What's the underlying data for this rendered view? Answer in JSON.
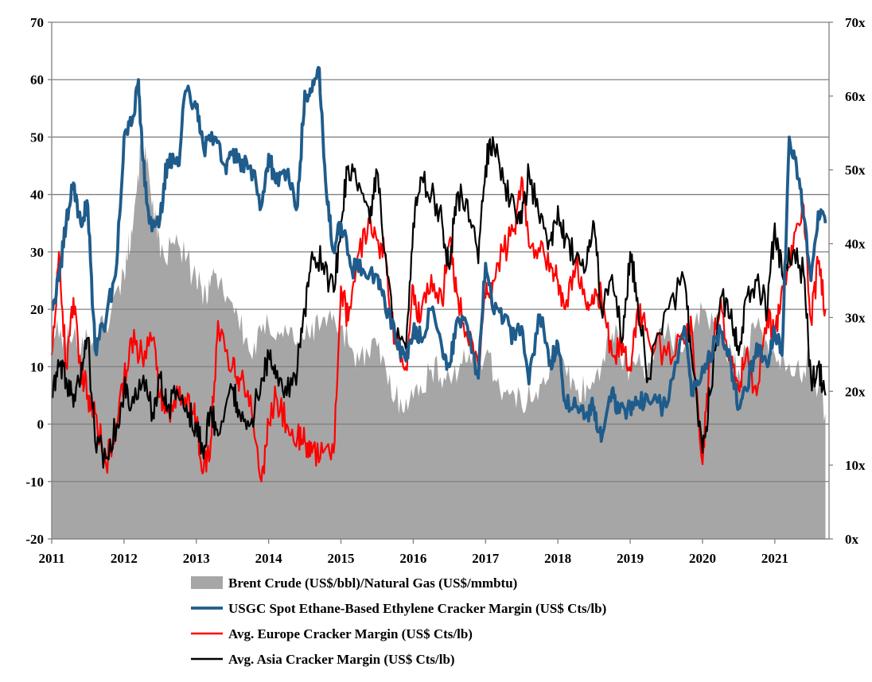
{
  "chart_data": {
    "type": "line",
    "x_ticks": [
      "2011",
      "2012",
      "2013",
      "2014",
      "2015",
      "2016",
      "2017",
      "2018",
      "2019",
      "2020",
      "2021"
    ],
    "x_range": [
      2011.0,
      2021.75
    ],
    "y_left": {
      "range": [
        -20,
        70
      ],
      "ticks": [
        "-20",
        "-10",
        "0",
        "10",
        "20",
        "30",
        "40",
        "50",
        "60",
        "70"
      ],
      "tick_values": [
        -20,
        -10,
        0,
        10,
        20,
        30,
        40,
        50,
        60,
        70
      ]
    },
    "y_right": {
      "range": [
        0,
        70
      ],
      "ticks": [
        "0x",
        "10x",
        "20x",
        "30x",
        "40x",
        "50x",
        "60x",
        "70x"
      ],
      "tick_values": [
        0,
        10,
        20,
        30,
        40,
        50,
        60,
        70
      ]
    },
    "grid": "horizontal",
    "legend_position": "bottom",
    "series": [
      {
        "name": "Brent Crude (US$/bbl)/Natural Gas (US$/mmbtu)",
        "type": "area",
        "axis": "right",
        "color": "#a6a6a6",
        "x": [
          2011.0,
          2011.25,
          2011.5,
          2011.75,
          2012.0,
          2012.1,
          2012.25,
          2012.4,
          2012.5,
          2012.75,
          2013.0,
          2013.1,
          2013.25,
          2013.5,
          2013.75,
          2014.0,
          2014.25,
          2014.5,
          2014.75,
          2015.0,
          2015.25,
          2015.5,
          2015.75,
          2016.0,
          2016.25,
          2016.5,
          2016.75,
          2017.0,
          2017.25,
          2017.5,
          2017.75,
          2018.0,
          2018.25,
          2018.5,
          2018.75,
          2019.0,
          2019.25,
          2019.5,
          2019.75,
          2020.0,
          2020.25,
          2020.5,
          2020.75,
          2021.0,
          2021.25,
          2021.5,
          2021.7
        ],
        "values": [
          28,
          27,
          27,
          29,
          36,
          42,
          54,
          46,
          38,
          40,
          35,
          33,
          36,
          32,
          25,
          29,
          28,
          27,
          30,
          29,
          24,
          26,
          19,
          19,
          23,
          22,
          24,
          25,
          20,
          18,
          21,
          25,
          20,
          21,
          28,
          23,
          24,
          28,
          26,
          31,
          28,
          23,
          29,
          25,
          22,
          24,
          17
        ]
      },
      {
        "name": "USGC Spot Ethane-Based Ethylene Cracker Margin (US$ Cts/lb)",
        "type": "line",
        "axis": "left",
        "color": "#1f5c8b",
        "x": [
          2011.0,
          2011.1,
          2011.2,
          2011.3,
          2011.4,
          2011.5,
          2011.6,
          2011.75,
          2011.9,
          2012.0,
          2012.1,
          2012.2,
          2012.25,
          2012.35,
          2012.5,
          2012.6,
          2012.75,
          2012.85,
          2013.0,
          2013.1,
          2013.25,
          2013.4,
          2013.5,
          2013.6,
          2013.75,
          2013.9,
          2014.0,
          2014.1,
          2014.25,
          2014.4,
          2014.5,
          2014.6,
          2014.7,
          2014.8,
          2014.9,
          2015.0,
          2015.15,
          2015.3,
          2015.5,
          2015.6,
          2015.75,
          2015.9,
          2016.0,
          2016.1,
          2016.25,
          2016.4,
          2016.5,
          2016.6,
          2016.75,
          2016.9,
          2017.0,
          2017.1,
          2017.25,
          2017.4,
          2017.5,
          2017.6,
          2017.75,
          2017.9,
          2018.0,
          2018.1,
          2018.25,
          2018.4,
          2018.5,
          2018.6,
          2018.75,
          2018.85,
          2019.0,
          2019.1,
          2019.25,
          2019.5,
          2019.75,
          2019.85,
          2020.0,
          2020.1,
          2020.25,
          2020.4,
          2020.5,
          2020.6,
          2020.75,
          2020.9,
          2021.0,
          2021.1,
          2021.2,
          2021.3,
          2021.4,
          2021.5,
          2021.6,
          2021.7
        ],
        "values": [
          20,
          25,
          35,
          42,
          35,
          38,
          13,
          18,
          28,
          50,
          52,
          60,
          48,
          35,
          36,
          46,
          45,
          58,
          55,
          48,
          50,
          45,
          47,
          46,
          45,
          38,
          47,
          42,
          44,
          38,
          58,
          58,
          62,
          40,
          30,
          35,
          27,
          27,
          26,
          22,
          15,
          11,
          16,
          15,
          20,
          13,
          10,
          18,
          17,
          8,
          28,
          20,
          18,
          15,
          17,
          7,
          19,
          11,
          14,
          4,
          3,
          2,
          3,
          -3,
          6,
          2,
          3,
          4,
          4,
          3,
          17,
          5,
          10,
          12,
          16,
          10,
          3,
          6,
          14,
          10,
          16,
          12,
          50,
          45,
          36,
          25,
          37,
          35
        ]
      },
      {
        "name": "Avg. Europe Cracker Margin (US$ Cts/lb)",
        "type": "line",
        "axis": "left",
        "color": "#ff0000",
        "x": [
          2011.0,
          2011.1,
          2011.2,
          2011.3,
          2011.4,
          2011.5,
          2011.6,
          2011.75,
          2011.9,
          2012.0,
          2012.1,
          2012.25,
          2012.4,
          2012.5,
          2012.6,
          2012.75,
          2012.9,
          2013.0,
          2013.1,
          2013.2,
          2013.3,
          2013.5,
          2013.6,
          2013.75,
          2013.9,
          2014.0,
          2014.1,
          2014.25,
          2014.4,
          2014.5,
          2014.6,
          2014.75,
          2014.9,
          2015.0,
          2015.1,
          2015.25,
          2015.4,
          2015.5,
          2015.6,
          2015.75,
          2015.9,
          2016.0,
          2016.1,
          2016.25,
          2016.4,
          2016.5,
          2016.6,
          2016.75,
          2016.9,
          2017.0,
          2017.1,
          2017.25,
          2017.4,
          2017.5,
          2017.6,
          2017.75,
          2017.9,
          2018.0,
          2018.1,
          2018.25,
          2018.4,
          2018.5,
          2018.6,
          2018.75,
          2018.9,
          2019.0,
          2019.1,
          2019.25,
          2019.5,
          2019.75,
          2019.85,
          2020.0,
          2020.1,
          2020.25,
          2020.4,
          2020.5,
          2020.6,
          2020.75,
          2020.9,
          2021.0,
          2021.1,
          2021.25,
          2021.4,
          2021.5,
          2021.6,
          2021.7
        ],
        "values": [
          12,
          30,
          10,
          22,
          10,
          5,
          2,
          -7,
          0,
          8,
          15,
          12,
          15,
          5,
          2,
          5,
          5,
          0,
          -8,
          -3,
          18,
          10,
          8,
          5,
          -10,
          0,
          5,
          0,
          -2,
          -3,
          -5,
          -5,
          -5,
          24,
          18,
          30,
          36,
          32,
          30,
          14,
          10,
          24,
          18,
          26,
          21,
          32,
          23,
          15,
          10,
          22,
          25,
          30,
          34,
          43,
          31,
          30,
          28,
          25,
          20,
          28,
          20,
          21,
          23,
          12,
          14,
          10,
          20,
          15,
          12,
          14,
          17,
          -7,
          12,
          22,
          10,
          6,
          12,
          5,
          20,
          15,
          24,
          30,
          38,
          18,
          28,
          20
        ]
      },
      {
        "name": "Avg. Asia Cracker Margin (US$ Cts/lb)",
        "type": "line",
        "axis": "left",
        "color": "#000000",
        "x": [
          2011.0,
          2011.1,
          2011.2,
          2011.3,
          2011.4,
          2011.5,
          2011.6,
          2011.75,
          2011.9,
          2012.0,
          2012.1,
          2012.25,
          2012.4,
          2012.5,
          2012.6,
          2012.75,
          2012.9,
          2013.0,
          2013.1,
          2013.2,
          2013.3,
          2013.5,
          2013.6,
          2013.75,
          2013.9,
          2014.0,
          2014.1,
          2014.25,
          2014.4,
          2014.5,
          2014.6,
          2014.75,
          2014.9,
          2015.0,
          2015.1,
          2015.25,
          2015.4,
          2015.5,
          2015.6,
          2015.75,
          2015.9,
          2016.0,
          2016.1,
          2016.25,
          2016.4,
          2016.5,
          2016.6,
          2016.75,
          2016.9,
          2017.0,
          2017.1,
          2017.25,
          2017.4,
          2017.5,
          2017.6,
          2017.75,
          2017.9,
          2018.0,
          2018.1,
          2018.25,
          2018.4,
          2018.5,
          2018.6,
          2018.75,
          2018.9,
          2019.0,
          2019.1,
          2019.25,
          2019.5,
          2019.75,
          2019.85,
          2020.0,
          2020.1,
          2020.25,
          2020.4,
          2020.5,
          2020.6,
          2020.75,
          2020.9,
          2021.0,
          2021.1,
          2021.25,
          2021.4,
          2021.5,
          2021.6,
          2021.7
        ],
        "values": [
          5,
          10,
          8,
          3,
          8,
          15,
          -3,
          -6,
          0,
          6,
          3,
          7,
          2,
          8,
          3,
          5,
          2,
          0,
          -6,
          3,
          -2,
          6,
          2,
          0,
          8,
          12,
          8,
          5,
          10,
          20,
          30,
          28,
          23,
          35,
          45,
          42,
          35,
          44,
          30,
          15,
          13,
          35,
          43,
          40,
          35,
          27,
          40,
          39,
          28,
          45,
          50,
          42,
          38,
          35,
          44,
          35,
          32,
          38,
          32,
          29,
          28,
          35,
          20,
          26,
          15,
          30,
          22,
          8,
          20,
          25,
          12,
          -5,
          5,
          22,
          20,
          12,
          22,
          25,
          20,
          35,
          26,
          30,
          26,
          8,
          10,
          5
        ]
      }
    ]
  }
}
